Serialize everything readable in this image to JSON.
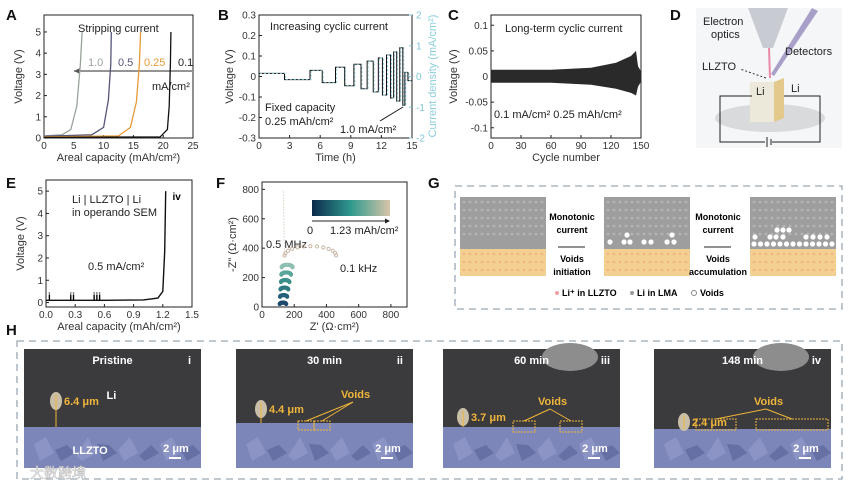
{
  "panel_labels": [
    "A",
    "B",
    "C",
    "D",
    "E",
    "F",
    "G",
    "H"
  ],
  "chart_data": [
    {
      "type": "line",
      "id": "A",
      "title": "",
      "annotation": "Stripping current",
      "xlabel": "Areal capacity (mAh/cm²)",
      "ylabel": "Voltage (V)",
      "xlim": [
        0,
        25
      ],
      "ylim": [
        0,
        5.8
      ],
      "xticks": [
        0,
        5,
        10,
        15,
        20,
        25
      ],
      "yticks": [
        0,
        1,
        2,
        3,
        4,
        5
      ],
      "unit_label": "mA/cm²",
      "series": [
        {
          "name": "1.0",
          "color": "#9aa39a",
          "points": [
            [
              0,
              0.1
            ],
            [
              3,
              0.15
            ],
            [
              4.5,
              0.4
            ],
            [
              5.5,
              1.5
            ],
            [
              6.1,
              3.5
            ],
            [
              6.4,
              5
            ]
          ]
        },
        {
          "name": "0.5",
          "color": "#55557a",
          "points": [
            [
              0,
              0.08
            ],
            [
              8,
              0.15
            ],
            [
              10,
              0.5
            ],
            [
              10.8,
              1.8
            ],
            [
              11.2,
              3.5
            ],
            [
              11.3,
              5
            ]
          ]
        },
        {
          "name": "0.25",
          "color": "#e69a38",
          "points": [
            [
              0,
              0.05
            ],
            [
              12.5,
              0.1
            ],
            [
              14.5,
              0.5
            ],
            [
              15.5,
              1.7
            ],
            [
              16,
              3.5
            ],
            [
              16.2,
              5
            ]
          ]
        },
        {
          "name": "0.1",
          "color": "#111111",
          "points": [
            [
              0,
              0.03
            ],
            [
              19.5,
              0.05
            ],
            [
              20.7,
              0.4
            ],
            [
              21,
              1.5
            ],
            [
              21.2,
              3.5
            ],
            [
              21.3,
              5
            ]
          ]
        }
      ]
    },
    {
      "type": "line",
      "id": "B",
      "annotation": "Increasing cyclic current",
      "note1": "Fixed capacity",
      "note2": "0.25 mAh/cm²",
      "note3": "1.0 mA/cm²",
      "xlabel": "Time (h)",
      "ylabel": "Voltage (V)",
      "y2label": "Current density (mA/cm²)",
      "xlim": [
        0,
        15
      ],
      "ylim": [
        -0.3,
        0.3
      ],
      "y2lim": [
        -2,
        2
      ],
      "xticks": [
        0,
        3,
        6,
        9,
        12,
        15
      ],
      "yticks": [
        -0.3,
        -0.2,
        -0.1,
        0.0,
        0.1,
        0.2,
        0.3
      ],
      "y2ticks": [
        -2,
        -1,
        0,
        1,
        2
      ],
      "steps": [
        [
          0,
          2.5,
          0.015
        ],
        [
          2.5,
          5,
          -0.015
        ],
        [
          5,
          6.2,
          0.03
        ],
        [
          6.2,
          7.5,
          -0.03
        ],
        [
          7.5,
          8.4,
          0.045
        ],
        [
          8.4,
          9.3,
          -0.045
        ],
        [
          9.3,
          10,
          0.06
        ],
        [
          10,
          10.6,
          -0.06
        ],
        [
          10.6,
          11.2,
          0.075
        ],
        [
          11.2,
          11.7,
          -0.075
        ],
        [
          11.7,
          12.1,
          0.09
        ],
        [
          12.1,
          12.5,
          -0.09
        ],
        [
          12.5,
          12.9,
          0.105
        ],
        [
          12.9,
          13.2,
          -0.105
        ],
        [
          13.2,
          13.5,
          0.12
        ],
        [
          13.5,
          13.8,
          -0.12
        ],
        [
          13.8,
          14.1,
          0.14
        ],
        [
          14.1,
          14.3,
          -0.14
        ],
        [
          14.3,
          14.6,
          0.02
        ],
        [
          14.6,
          15,
          -0.02
        ]
      ]
    },
    {
      "type": "area",
      "id": "C",
      "annotation": "Long-term cyclic current",
      "note": "0.1 mA/cm² 0.25 mAh/cm²",
      "xlabel": "Cycle number",
      "ylabel": "Voltage (V)",
      "xlim": [
        0,
        150
      ],
      "ylim": [
        -0.12,
        0.12
      ],
      "xticks": [
        0,
        30,
        60,
        90,
        120,
        150
      ],
      "yticks": [
        -0.1,
        -0.05,
        0.0,
        0.05,
        0.1
      ],
      "upper": [
        [
          0,
          0.013
        ],
        [
          60,
          0.013
        ],
        [
          100,
          0.017
        ],
        [
          125,
          0.027
        ],
        [
          140,
          0.04
        ],
        [
          145,
          0.05
        ],
        [
          147,
          0.02
        ],
        [
          150,
          0.01
        ]
      ],
      "lower": [
        [
          0,
          -0.012
        ],
        [
          60,
          -0.012
        ],
        [
          100,
          -0.016
        ],
        [
          125,
          -0.024
        ],
        [
          140,
          -0.032
        ],
        [
          145,
          -0.037
        ],
        [
          147,
          -0.02
        ],
        [
          150,
          -0.01
        ]
      ]
    },
    {
      "type": "line",
      "id": "E",
      "annotation1": "Li | LLZTO | Li",
      "annotation2": "in operando SEM",
      "note": "0.5 mA/cm²",
      "xlabel": "Areal capacity (mAh/cm²)",
      "ylabel": "Voltage (V)",
      "xlim": [
        0,
        1.5
      ],
      "ylim": [
        -0.2,
        5.5
      ],
      "xticks": [
        "0.0",
        "0.3",
        "0.6",
        "0.9",
        "1.2",
        "1.5"
      ],
      "yticks": [
        0,
        1,
        2,
        3,
        4,
        5
      ],
      "markers": [
        {
          "label": "i",
          "x": 0.02
        },
        {
          "label": "ii",
          "x": 0.24
        },
        {
          "label": "iii",
          "x": 0.48
        },
        {
          "label": "iv",
          "x": 1.3
        }
      ],
      "points": [
        [
          0,
          0.1
        ],
        [
          0.6,
          0.1
        ],
        [
          1.0,
          0.12
        ],
        [
          1.15,
          0.2
        ],
        [
          1.2,
          0.5
        ],
        [
          1.22,
          2.3
        ],
        [
          1.23,
          5
        ]
      ]
    },
    {
      "type": "scatter",
      "id": "F",
      "xlabel": "Z' (Ω·cm²)",
      "ylabel": "-Z\" (Ω·cm²)",
      "colorbar_min": "0",
      "colorbar_max": "1.23 mAh/cm²",
      "label_hf": "0.5 MHz",
      "label_lf": "0.1 kHz",
      "xlim": [
        0,
        900
      ],
      "ylim": [
        0,
        850
      ],
      "xticks": [
        0,
        200,
        400,
        600,
        800
      ],
      "yticks": [
        0,
        200,
        400,
        600,
        800
      ],
      "spectra": [
        {
          "color": "#1d4a6e",
          "r": 20,
          "x0": 110,
          "y0": 20
        },
        {
          "color": "#25607a",
          "r": 22,
          "x0": 112,
          "y0": 70
        },
        {
          "color": "#2e7a82",
          "r": 24,
          "x0": 115,
          "y0": 120
        },
        {
          "color": "#3a9088",
          "r": 26,
          "x0": 118,
          "y0": 170
        },
        {
          "color": "#5aa59a",
          "r": 30,
          "x0": 120,
          "y0": 220
        },
        {
          "color": "#8cbdb0",
          "r": 34,
          "x0": 122,
          "y0": 270
        },
        {
          "color": "#c9b8a6",
          "r": 160,
          "x0": 140,
          "y0": 350
        }
      ]
    }
  ],
  "panel_D": {
    "electron_optics": "Electron optics",
    "detectors": "Detectors",
    "llzto": "LLZTO",
    "li_left": "Li",
    "li_right": "Li"
  },
  "panel_G": {
    "step1_top": "Monotonic",
    "step1_mid": "current",
    "step1_bot1": "Voids",
    "step1_bot2": "initiation",
    "step2_top": "Monotonic",
    "step2_mid": "current",
    "step2_bot1": "Voids",
    "step2_bot2": "accumulation",
    "legend": [
      "Li⁺ in LLZTO",
      "Li in LMA",
      "Voids"
    ],
    "colors": {
      "llzto": "#f3cf92",
      "lma": "#9e9e9e",
      "void": "#ffffff"
    }
  },
  "panel_H": [
    {
      "title": "Pristine",
      "roman": "i",
      "thickness": "6.4 μm",
      "scale": "2 μm",
      "li": "Li",
      "llzto": "LLZTO"
    },
    {
      "title": "30 min",
      "roman": "ii",
      "thickness": "4.4 μm",
      "scale": "2 μm",
      "voids": "Voids"
    },
    {
      "title": "60 min",
      "roman": "iii",
      "thickness": "3.7 μm",
      "scale": "2 μm",
      "voids": "Voids"
    },
    {
      "title": "148 min",
      "roman": "iv",
      "thickness": "2.4 μm",
      "scale": "2 μm",
      "voids": "Voids"
    }
  ],
  "watermark": "大数跨境"
}
